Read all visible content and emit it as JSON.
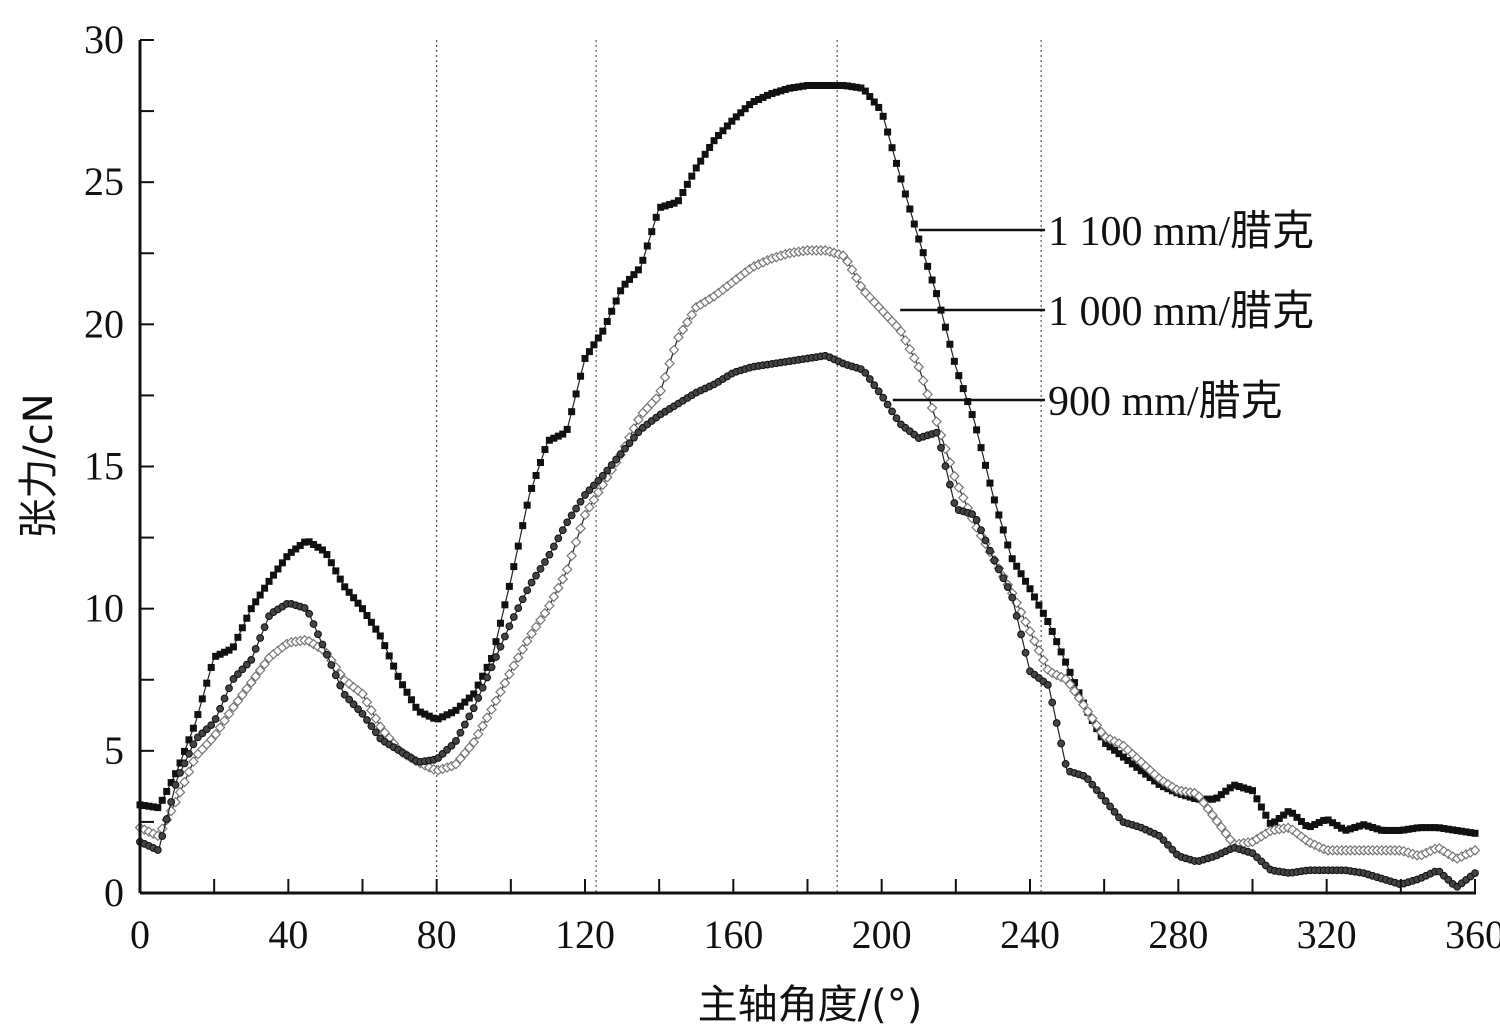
{
  "chart_data": {
    "type": "line",
    "title": "",
    "xlabel": "主轴角度/(°)",
    "ylabel": "张力/cN",
    "xlim": [
      0,
      360
    ],
    "ylim": [
      0,
      30
    ],
    "xticks": [
      0,
      40,
      80,
      120,
      160,
      200,
      240,
      280,
      320,
      360
    ],
    "yticks": [
      0,
      5,
      10,
      15,
      20,
      25,
      30
    ],
    "reference_lines_x": [
      80,
      123,
      188,
      243
    ],
    "grid": false,
    "legend_placement": "inline annotations, right",
    "x": [
      0,
      5,
      10,
      15,
      20,
      25,
      30,
      35,
      40,
      45,
      50,
      55,
      60,
      65,
      70,
      75,
      80,
      85,
      90,
      95,
      100,
      105,
      110,
      115,
      120,
      125,
      130,
      135,
      140,
      145,
      150,
      155,
      160,
      165,
      170,
      175,
      180,
      185,
      190,
      195,
      200,
      205,
      210,
      215,
      220,
      225,
      230,
      235,
      240,
      245,
      250,
      255,
      260,
      265,
      270,
      275,
      280,
      285,
      290,
      295,
      300,
      305,
      310,
      315,
      320,
      325,
      330,
      335,
      340,
      345,
      350,
      355,
      360
    ],
    "series": [
      {
        "name": "1 100 mm/腊克",
        "marker": "filled-square",
        "annotation_x": 210,
        "values": [
          3.1,
          3.0,
          4.3,
          6.0,
          8.3,
          8.6,
          10.0,
          11.0,
          11.9,
          12.4,
          12.0,
          10.8,
          10.0,
          9.0,
          7.5,
          6.4,
          6.1,
          6.4,
          7.0,
          8.3,
          11.0,
          14.0,
          15.9,
          16.2,
          18.8,
          19.8,
          21.3,
          22.0,
          24.1,
          24.3,
          25.5,
          26.5,
          27.2,
          27.8,
          28.1,
          28.3,
          28.4,
          28.4,
          28.4,
          28.3,
          27.5,
          25.2,
          23.0,
          21.0,
          18.5,
          16.6,
          14.0,
          11.8,
          10.7,
          9.5,
          8.0,
          6.5,
          5.3,
          4.8,
          4.3,
          3.8,
          3.5,
          3.3,
          3.3,
          3.8,
          3.6,
          2.4,
          2.9,
          2.3,
          2.6,
          2.2,
          2.4,
          2.2,
          2.2,
          2.3,
          2.3,
          2.2,
          2.1
        ]
      },
      {
        "name": "1 000 mm/腊克",
        "marker": "open-diamond",
        "annotation_x": 205,
        "values": [
          2.3,
          2.0,
          3.3,
          4.8,
          5.5,
          6.5,
          7.4,
          8.3,
          8.8,
          8.9,
          8.5,
          7.5,
          7.0,
          5.8,
          5.0,
          4.6,
          4.3,
          4.5,
          5.3,
          6.5,
          7.8,
          9.0,
          10.0,
          11.3,
          13.3,
          14.4,
          15.5,
          16.8,
          17.5,
          19.5,
          20.6,
          21.0,
          21.5,
          22.0,
          22.3,
          22.5,
          22.6,
          22.6,
          22.4,
          21.2,
          20.5,
          19.8,
          18.5,
          16.5,
          14.5,
          13.0,
          11.8,
          10.6,
          9.2,
          7.8,
          7.5,
          6.5,
          5.5,
          5.2,
          4.6,
          4.0,
          3.6,
          3.5,
          2.6,
          1.7,
          1.8,
          2.2,
          2.3,
          1.8,
          1.5,
          1.5,
          1.5,
          1.5,
          1.5,
          1.3,
          1.6,
          1.2,
          1.5
        ]
      },
      {
        "name": "900 mm/腊克",
        "marker": "shaded-circle",
        "annotation_x": 203,
        "values": [
          1.8,
          1.5,
          4.0,
          5.4,
          6.0,
          7.5,
          8.2,
          9.8,
          10.2,
          10.0,
          8.5,
          7.0,
          6.3,
          5.4,
          5.0,
          4.6,
          4.7,
          5.3,
          6.5,
          8.0,
          9.5,
          10.8,
          11.8,
          13.0,
          14.0,
          14.7,
          15.5,
          16.3,
          16.8,
          17.2,
          17.6,
          17.9,
          18.3,
          18.5,
          18.6,
          18.7,
          18.8,
          18.9,
          18.6,
          18.4,
          17.5,
          16.5,
          16.0,
          16.2,
          13.5,
          13.3,
          11.8,
          10.5,
          7.8,
          7.3,
          4.3,
          4.1,
          3.3,
          2.5,
          2.3,
          2.0,
          1.3,
          1.1,
          1.3,
          1.6,
          1.4,
          0.8,
          0.7,
          0.8,
          0.8,
          0.8,
          0.7,
          0.5,
          0.3,
          0.5,
          0.8,
          0.2,
          0.7
        ]
      }
    ]
  }
}
